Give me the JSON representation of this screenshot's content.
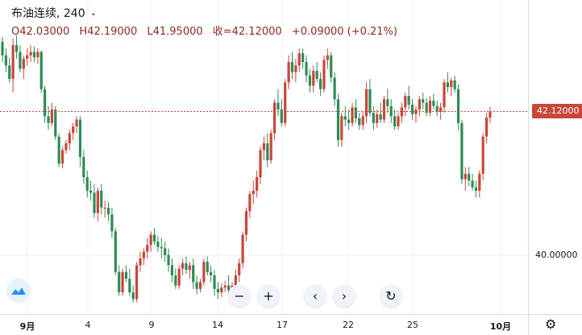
{
  "legend": {
    "symbol": "布油连续, 240",
    "open": "O42.03000",
    "high": "H42.19000",
    "low": "L41.95000",
    "close": "收=42.12000",
    "change": "+0.09000 (+0.21%)"
  },
  "price_axis": {
    "last_price_tag": "42.12000",
    "labels": [
      "40.00000"
    ]
  },
  "time_axis": {
    "ticks": [
      "9月",
      "4",
      "9",
      "14",
      "17",
      "22",
      "25",
      "10月"
    ]
  },
  "toolbar": {
    "zoom_out": "−",
    "zoom_in": "+",
    "scroll_left": "‹",
    "scroll_right": "›",
    "reset": "↻"
  },
  "colors": {
    "up": "#c8463a",
    "down": "#2e8b57",
    "last_price_line": "#c8463a",
    "grid": "#eef0f3"
  },
  "icons": {
    "logo": "tradingview-cloud-icon",
    "settings": "gear-icon"
  },
  "chart_data": {
    "type": "candlestick",
    "title": "布油连续, 240",
    "ylim": [
      39.2,
      43.6
    ],
    "last_price": 42.12,
    "y_ticks": [
      40.0
    ],
    "x_ticks": [
      "9月",
      "4",
      "9",
      "14",
      "17",
      "22",
      "25",
      "10月"
    ],
    "candles": [
      [
        43.15,
        43.22,
        42.85,
        42.95
      ],
      [
        42.95,
        43.05,
        42.7,
        42.8
      ],
      [
        42.8,
        42.92,
        42.55,
        42.6
      ],
      [
        42.6,
        43.2,
        42.4,
        43.1
      ],
      [
        43.1,
        43.25,
        42.9,
        43.0
      ],
      [
        43.0,
        43.1,
        42.7,
        42.75
      ],
      [
        42.75,
        42.95,
        42.6,
        42.9
      ],
      [
        42.9,
        43.05,
        42.8,
        42.95
      ],
      [
        42.95,
        43.1,
        42.85,
        43.0
      ],
      [
        43.0,
        43.08,
        42.85,
        42.92
      ],
      [
        42.92,
        43.05,
        42.82,
        43.0
      ],
      [
        43.0,
        43.02,
        42.4,
        42.45
      ],
      [
        42.45,
        42.5,
        41.95,
        42.05
      ],
      [
        42.05,
        42.2,
        41.85,
        41.95
      ],
      [
        41.95,
        42.25,
        41.9,
        42.15
      ],
      [
        42.15,
        42.2,
        41.7,
        41.75
      ],
      [
        41.75,
        41.8,
        41.3,
        41.35
      ],
      [
        41.35,
        41.6,
        41.28,
        41.55
      ],
      [
        41.55,
        41.7,
        41.5,
        41.65
      ],
      [
        41.65,
        41.85,
        41.55,
        41.8
      ],
      [
        41.8,
        41.95,
        41.7,
        41.9
      ],
      [
        41.9,
        42.05,
        41.8,
        42.0
      ],
      [
        42.0,
        42.05,
        41.3,
        41.45
      ],
      [
        41.45,
        41.55,
        41.05,
        41.15
      ],
      [
        41.15,
        41.25,
        40.85,
        40.95
      ],
      [
        40.95,
        41.1,
        40.8,
        40.92
      ],
      [
        40.92,
        41.05,
        40.55,
        40.62
      ],
      [
        40.62,
        41.0,
        40.5,
        40.95
      ],
      [
        40.95,
        41.05,
        40.6,
        40.7
      ],
      [
        40.7,
        40.8,
        40.55,
        40.7
      ],
      [
        40.7,
        40.78,
        40.5,
        40.6
      ],
      [
        40.6,
        40.7,
        40.25,
        40.35
      ],
      [
        40.35,
        40.4,
        39.7,
        39.75
      ],
      [
        39.75,
        39.85,
        39.4,
        39.45
      ],
      [
        39.45,
        39.8,
        39.4,
        39.75
      ],
      [
        39.75,
        39.85,
        39.6,
        39.65
      ],
      [
        39.65,
        39.8,
        39.4,
        39.45
      ],
      [
        39.45,
        39.55,
        39.3,
        39.35
      ],
      [
        39.35,
        39.9,
        39.3,
        39.85
      ],
      [
        39.85,
        40.05,
        39.75,
        39.95
      ],
      [
        39.95,
        40.1,
        39.85,
        40.05
      ],
      [
        40.05,
        40.25,
        39.95,
        40.15
      ],
      [
        40.15,
        40.35,
        40.05,
        40.3
      ],
      [
        40.3,
        40.4,
        40.15,
        40.2
      ],
      [
        40.2,
        40.28,
        40.05,
        40.12
      ],
      [
        40.12,
        40.25,
        39.95,
        40.1
      ],
      [
        40.1,
        40.2,
        39.9,
        40.0
      ],
      [
        40.0,
        40.1,
        39.75,
        39.85
      ],
      [
        39.85,
        39.95,
        39.6,
        39.7
      ],
      [
        39.7,
        39.8,
        39.5,
        39.55
      ],
      [
        39.55,
        39.85,
        39.5,
        39.8
      ],
      [
        39.8,
        39.95,
        39.7,
        39.88
      ],
      [
        39.88,
        39.98,
        39.72,
        39.78
      ],
      [
        39.78,
        39.9,
        39.65,
        39.85
      ],
      [
        39.85,
        39.95,
        39.5,
        39.6
      ],
      [
        39.6,
        39.7,
        39.42,
        39.5
      ],
      [
        39.5,
        39.65,
        39.45,
        39.6
      ],
      [
        39.6,
        39.95,
        39.55,
        39.9
      ],
      [
        39.9,
        39.98,
        39.7,
        39.75
      ],
      [
        39.75,
        39.85,
        39.6,
        39.7
      ],
      [
        39.7,
        39.78,
        39.4,
        39.5
      ],
      [
        39.5,
        39.6,
        39.35,
        39.45
      ],
      [
        39.45,
        39.58,
        39.38,
        39.52
      ],
      [
        39.52,
        39.62,
        39.45,
        39.55
      ],
      [
        39.55,
        39.7,
        39.4,
        39.48
      ],
      [
        39.48,
        39.6,
        39.4,
        39.55
      ],
      [
        39.55,
        39.78,
        39.5,
        39.7
      ],
      [
        39.7,
        39.95,
        39.6,
        39.88
      ],
      [
        39.88,
        40.35,
        39.8,
        40.3
      ],
      [
        40.3,
        40.7,
        40.2,
        40.65
      ],
      [
        40.65,
        40.95,
        40.55,
        40.9
      ],
      [
        40.9,
        41.1,
        40.75,
        40.95
      ],
      [
        40.95,
        41.25,
        40.85,
        41.15
      ],
      [
        41.15,
        41.6,
        41.05,
        41.55
      ],
      [
        41.55,
        41.75,
        41.4,
        41.65
      ],
      [
        41.65,
        41.8,
        41.3,
        41.4
      ],
      [
        41.4,
        41.85,
        41.35,
        41.8
      ],
      [
        41.8,
        42.3,
        41.7,
        42.25
      ],
      [
        42.25,
        42.45,
        42.05,
        42.15
      ],
      [
        42.15,
        42.3,
        41.9,
        41.95
      ],
      [
        41.95,
        42.6,
        41.9,
        42.55
      ],
      [
        42.55,
        42.95,
        42.45,
        42.85
      ],
      [
        42.85,
        43.0,
        42.6,
        42.7
      ],
      [
        42.7,
        42.9,
        42.55,
        42.8
      ],
      [
        42.8,
        43.05,
        42.7,
        42.98
      ],
      [
        42.98,
        43.05,
        42.75,
        42.85
      ],
      [
        42.85,
        42.95,
        42.55,
        42.65
      ],
      [
        42.65,
        42.75,
        42.4,
        42.5
      ],
      [
        42.5,
        42.8,
        42.4,
        42.72
      ],
      [
        42.72,
        42.85,
        42.55,
        42.6
      ],
      [
        42.6,
        42.7,
        42.35,
        42.45
      ],
      [
        42.45,
        42.95,
        42.4,
        42.88
      ],
      [
        42.88,
        43.05,
        42.75,
        42.95
      ],
      [
        42.95,
        43.0,
        42.55,
        42.62
      ],
      [
        42.62,
        42.7,
        42.2,
        42.3
      ],
      [
        42.3,
        42.38,
        41.6,
        41.7
      ],
      [
        41.7,
        42.1,
        41.6,
        42.05
      ],
      [
        42.05,
        42.2,
        41.9,
        42.0
      ],
      [
        42.0,
        42.15,
        41.85,
        41.95
      ],
      [
        41.95,
        42.25,
        41.9,
        42.18
      ],
      [
        42.18,
        42.3,
        41.95,
        42.02
      ],
      [
        42.02,
        42.1,
        41.85,
        41.92
      ],
      [
        41.92,
        42.12,
        41.85,
        42.05
      ],
      [
        42.05,
        42.55,
        41.95,
        42.45
      ],
      [
        42.45,
        42.6,
        42.05,
        42.1
      ],
      [
        42.1,
        42.2,
        41.85,
        41.95
      ],
      [
        41.95,
        42.15,
        41.88,
        42.08
      ],
      [
        42.08,
        42.25,
        41.95,
        42.0
      ],
      [
        42.0,
        42.35,
        41.95,
        42.3
      ],
      [
        42.3,
        42.45,
        42.1,
        42.2
      ],
      [
        42.2,
        42.3,
        41.95,
        42.05
      ],
      [
        42.05,
        42.15,
        41.85,
        41.9
      ],
      [
        41.9,
        42.1,
        41.85,
        42.05
      ],
      [
        42.05,
        42.25,
        41.95,
        42.18
      ],
      [
        42.18,
        42.4,
        42.05,
        42.35
      ],
      [
        42.35,
        42.5,
        42.15,
        42.22
      ],
      [
        42.22,
        42.3,
        42.0,
        42.08
      ],
      [
        42.08,
        42.2,
        41.95,
        42.15
      ],
      [
        42.15,
        42.35,
        42.05,
        42.3
      ],
      [
        42.3,
        42.4,
        42.15,
        42.25
      ],
      [
        42.25,
        42.32,
        42.05,
        42.1
      ],
      [
        42.1,
        42.35,
        42.05,
        42.28
      ],
      [
        42.28,
        42.38,
        42.15,
        42.2
      ],
      [
        42.2,
        42.28,
        42.05,
        42.12
      ],
      [
        42.12,
        42.25,
        42.0,
        42.18
      ],
      [
        42.18,
        42.6,
        42.1,
        42.55
      ],
      [
        42.55,
        42.7,
        42.4,
        42.48
      ],
      [
        42.48,
        42.62,
        42.35,
        42.58
      ],
      [
        42.58,
        42.65,
        42.4,
        42.45
      ],
      [
        42.45,
        42.52,
        41.85,
        41.95
      ],
      [
        41.95,
        42.0,
        41.05,
        41.12
      ],
      [
        41.12,
        41.3,
        40.95,
        41.2
      ],
      [
        41.2,
        41.3,
        41.02,
        41.1
      ],
      [
        41.1,
        41.2,
        40.95,
        41.0
      ],
      [
        41.0,
        41.1,
        40.85,
        40.95
      ],
      [
        40.95,
        41.25,
        40.85,
        41.2
      ],
      [
        41.2,
        41.8,
        41.1,
        41.75
      ],
      [
        41.75,
        42.1,
        41.65,
        42.03
      ],
      [
        42.03,
        42.19,
        41.95,
        42.12
      ]
    ]
  }
}
